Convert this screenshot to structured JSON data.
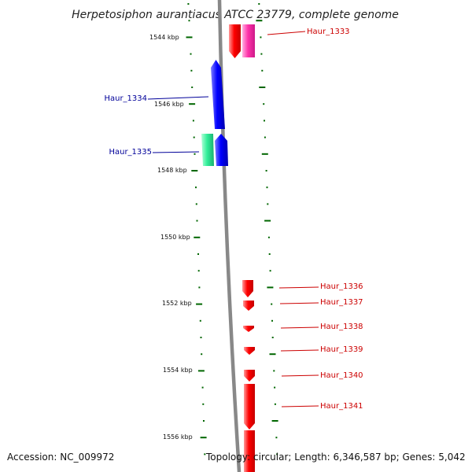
{
  "title": "Herpetosiphon aurantiacus ATCC 23779, complete genome",
  "accession": "Accession: NC_009972",
  "summary": "Topology: circular; Length: 6,346,587 bp; Genes: 5,042",
  "colors": {
    "forward_red": "#ff0000",
    "pink": "#ff33aa",
    "blue": "#0000ff",
    "teal": "#33ee99",
    "backbone": "#888888",
    "ticks": "#006600",
    "label_blue": "#000099",
    "label_red": "#cc0000"
  },
  "ruler_labels": [
    "1544 kbp",
    "1546 kbp",
    "1548 kbp",
    "1550 kbp",
    "1552 kbp",
    "1554 kbp",
    "1556 kbp"
  ],
  "genes": [
    {
      "name": "Haur_1333",
      "color": "#ff0000",
      "strand": "forward"
    },
    {
      "name": "",
      "color": "#ff33aa",
      "strand": "forward"
    },
    {
      "name": "Haur_1334",
      "color": "#0000ff",
      "strand": "reverse"
    },
    {
      "name": "Haur_1335",
      "color": "#33ee99",
      "strand": "reverse"
    },
    {
      "name": "",
      "color": "#0000ff",
      "strand": "reverse"
    },
    {
      "name": "Haur_1336",
      "color": "#ff0000",
      "strand": "forward"
    },
    {
      "name": "Haur_1337",
      "color": "#ff0000",
      "strand": "forward"
    },
    {
      "name": "Haur_1338",
      "color": "#ff0000",
      "strand": "forward"
    },
    {
      "name": "Haur_1339",
      "color": "#ff0000",
      "strand": "forward"
    },
    {
      "name": "Haur_1340",
      "color": "#ff0000",
      "strand": "forward"
    },
    {
      "name": "Haur_1341",
      "color": "#ff0000",
      "strand": "forward"
    }
  ]
}
